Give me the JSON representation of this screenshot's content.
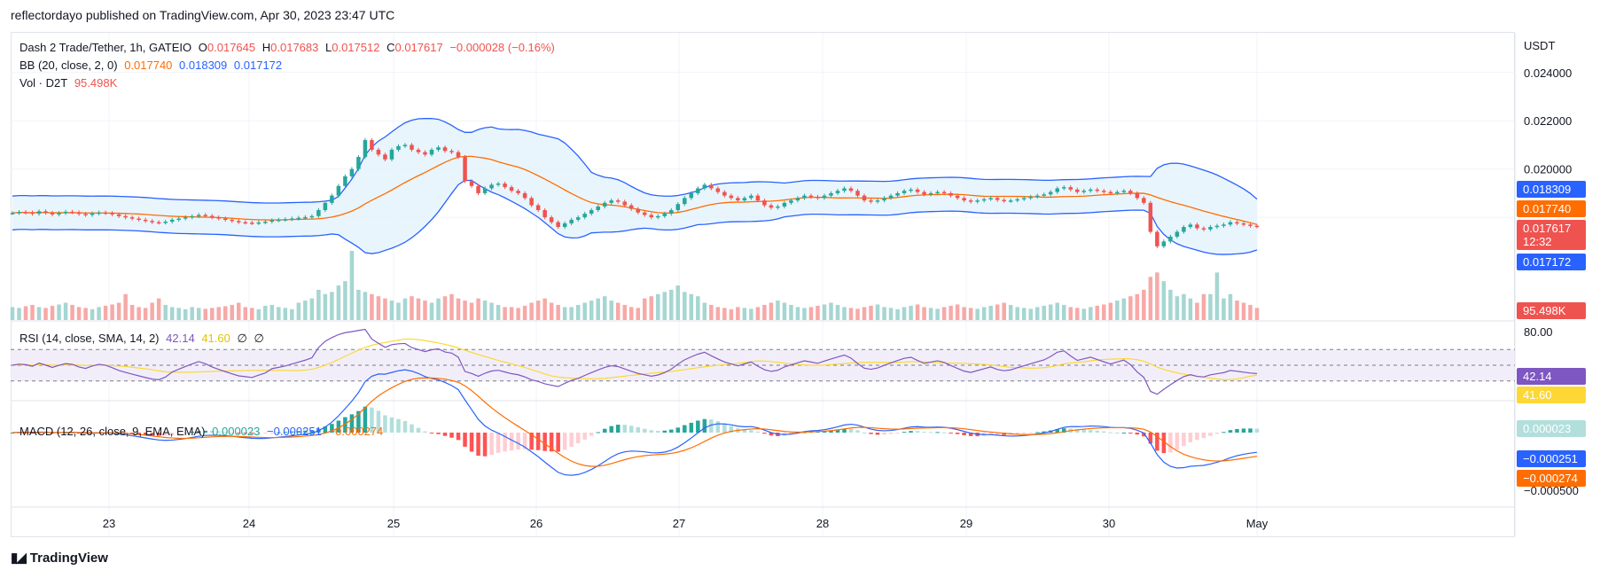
{
  "publisher": "reflectordayo published on TradingView.com, Apr 30, 2023 23:47 UTC",
  "brand": "TradingView",
  "currency": "USDT",
  "legend": {
    "symbol": "Dash 2 Trade/Tether, 1h, GATEIO",
    "o_label": "O",
    "o": "0.017645",
    "h_label": "H",
    "h": "0.017683",
    "l_label": "L",
    "l": "0.017512",
    "c_label": "C",
    "c": "0.017617",
    "change": "−0.000028 (−0.16%)",
    "bb_label": "BB (20, close, 2, 0)",
    "bb_mid": "0.017740",
    "bb_upper": "0.018309",
    "bb_lower": "0.017172",
    "vol_label": "Vol · D2T",
    "vol": "95.498K",
    "rsi_label": "RSI (14, close, SMA, 14, 2)",
    "rsi": "42.14",
    "rsi_ma": "41.60",
    "rsi_na1": "∅",
    "rsi_na2": "∅",
    "macd_label": "MACD (12, 26, close, 9, EMA, EMA)",
    "macd_hist": "0.000023",
    "macd": "−0.000251",
    "macd_signal": "−0.000274"
  },
  "colors": {
    "up": "#26a69a",
    "down": "#ef5350",
    "bb_band": "#2962ff",
    "bb_mid": "#ff6d00",
    "bb_fill": "#e3f2fd",
    "rsi": "#7e57c2",
    "rsi_ma": "#fdd835",
    "rsi_fill": "#ede7f6",
    "macd": "#2962ff",
    "signal": "#ff6d00"
  },
  "chart_data": {
    "type": "candlestick",
    "x_ticks": [
      "23",
      "24",
      "25",
      "26",
      "27",
      "28",
      "29",
      "30",
      "May"
    ],
    "price_ticks": [
      "0.024000",
      "0.022000",
      "0.020000"
    ],
    "price_range": [
      0.0165,
      0.0248
    ],
    "price_badges": [
      {
        "label": "0.018309",
        "value": 0.018309,
        "color": "#2962ff"
      },
      {
        "label": "0.017740",
        "value": 0.01774,
        "color": "#ff6d00"
      },
      {
        "label": "0.017617",
        "value": 0.017617,
        "color": "#ef5350",
        "sub": "12:32"
      },
      {
        "label": "0.017172",
        "value": 0.017172,
        "color": "#2962ff"
      }
    ],
    "vol_badge": "95.498K",
    "rsi_ticks": [
      "80.00"
    ],
    "rsi_levels": [
      70,
      50,
      30
    ],
    "rsi_badges": [
      {
        "label": "42.14",
        "color": "#7e57c2"
      },
      {
        "label": "41.60",
        "color": "#fdd835"
      }
    ],
    "macd_badges": [
      {
        "label": "0.000023",
        "color": "#b2dfdb",
        "dark": true
      },
      {
        "label": "−0.000251",
        "color": "#2962ff"
      },
      {
        "label": "−0.000274",
        "color": "#ff6d00"
      }
    ],
    "macd_tick": "−0.000500",
    "close_series": [
      0.01818,
      0.01822,
      0.0182,
      0.01815,
      0.01825,
      0.01819,
      0.01812,
      0.01818,
      0.01823,
      0.01821,
      0.01814,
      0.0181,
      0.01816,
      0.0182,
      0.01818,
      0.01812,
      0.01805,
      0.018,
      0.01795,
      0.0179,
      0.01785,
      0.0178,
      0.01778,
      0.01782,
      0.0179,
      0.01795,
      0.018,
      0.01805,
      0.0181,
      0.01806,
      0.018,
      0.01795,
      0.0179,
      0.01785,
      0.0178,
      0.01778,
      0.01776,
      0.01779,
      0.01782,
      0.01788,
      0.0179,
      0.01792,
      0.01795,
      0.01798,
      0.01801,
      0.01805,
      0.0183,
      0.0186,
      0.0189,
      0.0193,
      0.0197,
      0.02,
      0.0205,
      0.0212,
      0.0208,
      0.0206,
      0.0204,
      0.0208,
      0.02095,
      0.021,
      0.0208,
      0.0207,
      0.0206,
      0.0208,
      0.0209,
      0.02075,
      0.0207,
      0.0205,
      0.0195,
      0.0193,
      0.019,
      0.0192,
      0.01935,
      0.0194,
      0.01925,
      0.0191,
      0.019,
      0.0188,
      0.0185,
      0.0183,
      0.018,
      0.0178,
      0.0176,
      0.01775,
      0.0179,
      0.018,
      0.01815,
      0.0183,
      0.01845,
      0.0186,
      0.0187,
      0.01865,
      0.0185,
      0.01835,
      0.0182,
      0.0181,
      0.018,
      0.01805,
      0.01815,
      0.0183,
      0.01855,
      0.0188,
      0.019,
      0.0192,
      0.01935,
      0.0192,
      0.01905,
      0.0189,
      0.0188,
      0.0187,
      0.0188,
      0.0189,
      0.0187,
      0.0185,
      0.0184,
      0.01845,
      0.0186,
      0.0187,
      0.0188,
      0.0189,
      0.01885,
      0.0188,
      0.0189,
      0.019,
      0.0191,
      0.0192,
      0.0191,
      0.0189,
      0.0187,
      0.01865,
      0.0187,
      0.0188,
      0.0189,
      0.019,
      0.0191,
      0.01915,
      0.01905,
      0.01895,
      0.019,
      0.01905,
      0.019,
      0.0189,
      0.0188,
      0.0187,
      0.01865,
      0.0187,
      0.01875,
      0.0188,
      0.01872,
      0.01868,
      0.0187,
      0.01875,
      0.0188,
      0.01885,
      0.0189,
      0.01895,
      0.01905,
      0.0192,
      0.01925,
      0.01915,
      0.01905,
      0.0191,
      0.01915,
      0.0191,
      0.01905,
      0.019,
      0.01905,
      0.0191,
      0.019,
      0.0188,
      0.0186,
      0.0174,
      0.0168,
      0.017,
      0.0172,
      0.0174,
      0.0176,
      0.0177,
      0.01755,
      0.0175,
      0.0176,
      0.01765,
      0.0177,
      0.0178,
      0.01775,
      0.0177,
      0.01765,
      0.01762
    ],
    "volume_series": [
      30,
      28,
      32,
      35,
      30,
      28,
      33,
      36,
      40,
      35,
      30,
      28,
      25,
      30,
      33,
      36,
      40,
      60,
      35,
      30,
      28,
      40,
      50,
      35,
      30,
      28,
      25,
      30,
      28,
      26,
      28,
      30,
      32,
      35,
      40,
      30,
      28,
      25,
      33,
      35,
      30,
      28,
      25,
      40,
      45,
      50,
      70,
      60,
      65,
      80,
      90,
      160,
      70,
      65,
      60,
      55,
      50,
      45,
      40,
      50,
      55,
      50,
      45,
      40,
      50,
      55,
      60,
      50,
      45,
      40,
      50,
      45,
      40,
      35,
      30,
      30,
      28,
      33,
      40,
      45,
      50,
      40,
      35,
      30,
      30,
      35,
      40,
      45,
      50,
      55,
      45,
      40,
      35,
      30,
      28,
      50,
      55,
      60,
      65,
      70,
      80,
      65,
      60,
      55,
      40,
      35,
      30,
      28,
      25,
      30,
      28,
      26,
      30,
      35,
      40,
      45,
      40,
      35,
      30,
      28,
      30,
      33,
      36,
      40,
      35,
      30,
      28,
      26,
      30,
      33,
      36,
      30,
      28,
      25,
      30,
      33,
      36,
      30,
      28,
      26,
      30,
      33,
      36,
      30,
      28,
      26,
      30,
      33,
      36,
      40,
      35,
      30,
      28,
      26,
      30,
      33,
      36,
      40,
      35,
      30,
      28,
      26,
      30,
      33,
      36,
      40,
      45,
      50,
      55,
      60,
      70,
      100,
      110,
      90,
      70,
      55,
      60,
      50,
      40,
      60,
      60,
      110,
      50,
      60,
      45,
      40,
      35,
      28
    ]
  }
}
